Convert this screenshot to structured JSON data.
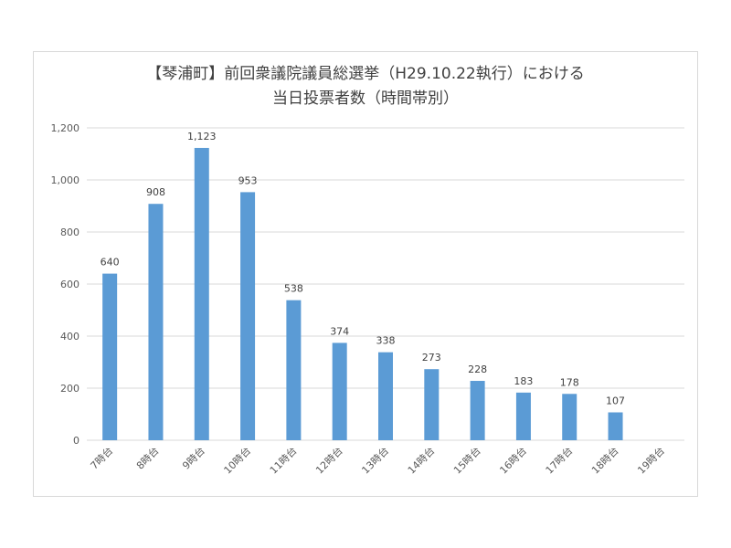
{
  "chart_data": {
    "type": "bar",
    "title_lines": [
      "【琴浦町】前回衆議院議員総選挙（H29.10.22執行）における",
      "当日投票者数（時間帯別）"
    ],
    "categories": [
      "7時台",
      "8時台",
      "9時台",
      "10時台",
      "11時台",
      "12時台",
      "13時台",
      "14時台",
      "15時台",
      "16時台",
      "17時台",
      "18時台",
      "19時台"
    ],
    "values": [
      640,
      908,
      1123,
      953,
      538,
      374,
      338,
      273,
      228,
      183,
      178,
      107,
      null
    ],
    "value_labels": [
      "640",
      "908",
      "1,123",
      "953",
      "538",
      "374",
      "338",
      "273",
      "228",
      "183",
      "178",
      "107",
      ""
    ],
    "ylim": [
      0,
      1200
    ],
    "yticks": [
      0,
      200,
      400,
      600,
      800,
      1000,
      1200
    ],
    "ytick_labels": [
      "0",
      "200",
      "400",
      "600",
      "800",
      "1,000",
      "1,200"
    ],
    "grid": true,
    "bar_color": "#5b9bd5",
    "grid_color": "#d9d9d9"
  }
}
